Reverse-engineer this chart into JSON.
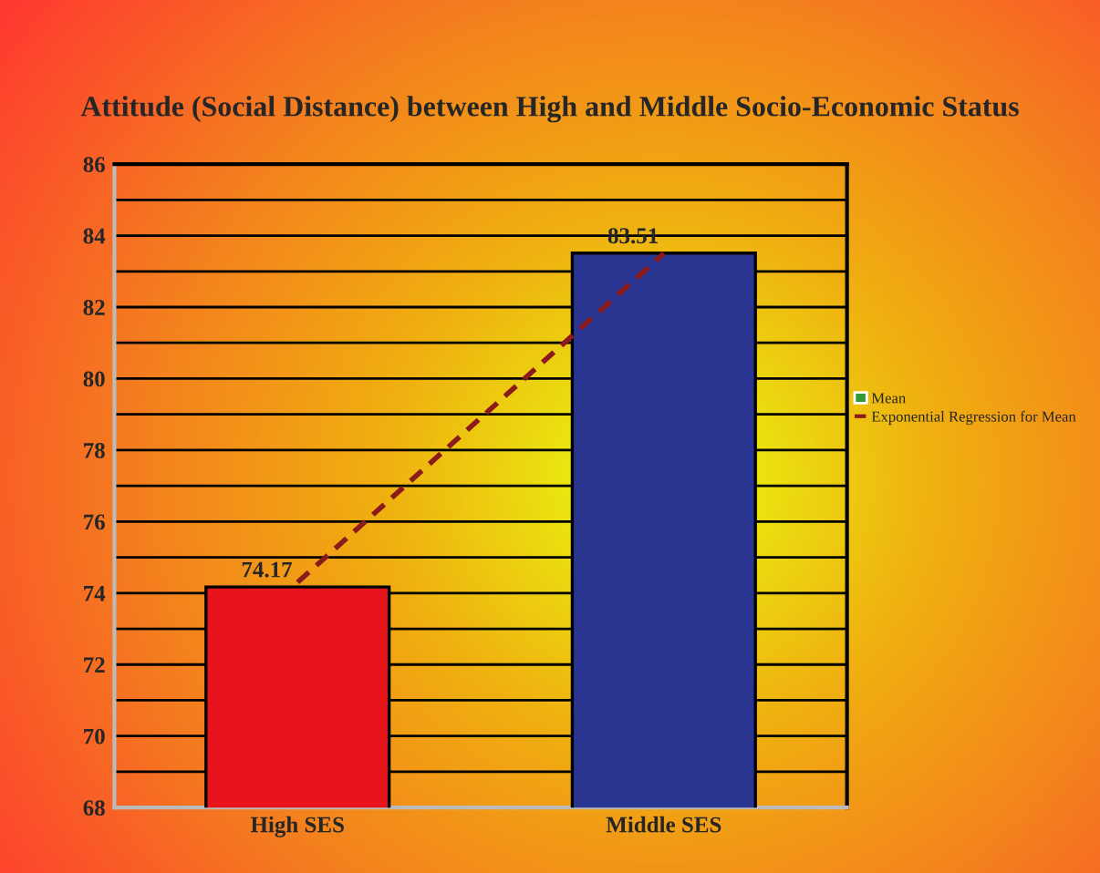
{
  "chart_data": {
    "type": "bar",
    "title": "Attitude (Social Distance) between High and Middle Socio-Economic Status",
    "categories": [
      "High SES",
      "Middle SES"
    ],
    "series": [
      {
        "name": "Mean",
        "color": "#339933",
        "colors": [
          "#e8141c",
          "#2a3592"
        ],
        "values": [
          74.17,
          83.51
        ],
        "value_labels": [
          "74.17",
          "83.51"
        ]
      },
      {
        "name": "Exponential Regression for Mean",
        "type": "line",
        "color": "#8b1a1a",
        "line_style": "dashed",
        "values": [
          74.3,
          83.5
        ]
      }
    ],
    "ylim": [
      68,
      86
    ],
    "yticks": [
      68,
      {
        "value": 69,
        "label": null
      },
      70,
      {
        "value": 71,
        "label": null
      },
      72,
      {
        "value": 73,
        "label": null
      },
      74,
      {
        "value": 75,
        "label": null
      },
      76,
      {
        "value": 77,
        "label": null
      },
      78,
      {
        "value": 79,
        "label": null
      },
      80,
      {
        "value": 81,
        "label": null
      },
      82,
      {
        "value": 83,
        "label": null
      },
      84,
      {
        "value": 85,
        "label": null
      },
      86
    ],
    "grid": "y",
    "legend": "right"
  }
}
